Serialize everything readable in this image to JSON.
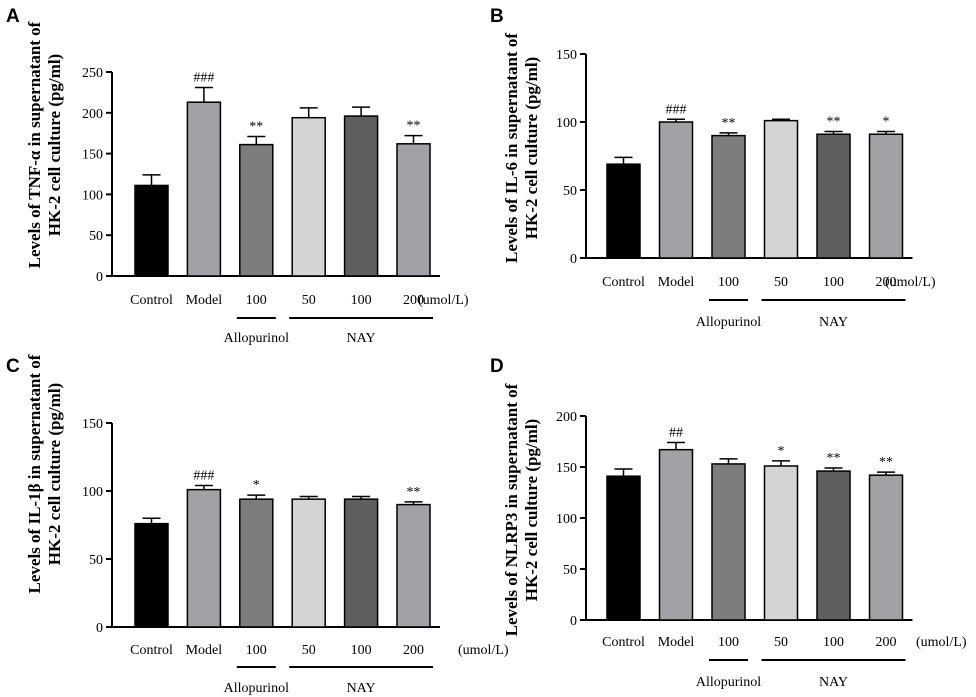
{
  "figure": {
    "categories": [
      "Control",
      "Model",
      "100",
      "50",
      "100",
      "200"
    ],
    "units": "(umol/L)",
    "groups": [
      {
        "label": "Allopurinol",
        "from": 2,
        "to": 2
      },
      {
        "label": "NAY",
        "from": 3,
        "to": 5
      }
    ],
    "bar_colors": [
      "#000000",
      "#a1a1a6",
      "#7d7d7d",
      "#d4d4d4",
      "#5e5e5e",
      "#a1a1a6"
    ]
  },
  "chart_data": [
    {
      "type": "bar",
      "panel": "A",
      "ylabel_line1": "Levels of TNF-α in supernatant of",
      "ylabel_line2": "HK-2 cell culture (pg/ml)",
      "categories": [
        "Control",
        "Model",
        "100",
        "50",
        "100",
        "200"
      ],
      "values": [
        111,
        213,
        161,
        194,
        196,
        162
      ],
      "errors": [
        13,
        18,
        10,
        12,
        11,
        10
      ],
      "significance": [
        "",
        "###",
        "**",
        "",
        "",
        "**"
      ],
      "ylim": [
        0,
        250
      ],
      "yticks": [
        0,
        50,
        100,
        150,
        200,
        250
      ]
    },
    {
      "type": "bar",
      "panel": "B",
      "ylabel_line1": "Levels of IL-6 in supernatant of",
      "ylabel_line2": "HK-2 cell culture (pg/ml)",
      "categories": [
        "Control",
        "Model",
        "100",
        "50",
        "100",
        "200"
      ],
      "values": [
        69,
        100,
        90,
        101,
        91,
        91
      ],
      "errors": [
        5,
        2,
        2,
        1,
        2,
        2
      ],
      "significance": [
        "",
        "###",
        "**",
        "",
        "**",
        "*"
      ],
      "ylim": [
        0,
        150
      ],
      "yticks": [
        0,
        50,
        100,
        150
      ]
    },
    {
      "type": "bar",
      "panel": "C",
      "ylabel_line1": "Levels of IL-1β in supernatant of",
      "ylabel_line2": "HK-2 cell culture (pg/ml)",
      "categories": [
        "Control",
        "Model",
        "100",
        "50",
        "100",
        "200"
      ],
      "values": [
        76,
        101,
        94,
        94,
        94,
        90
      ],
      "errors": [
        4,
        3,
        3,
        2,
        2,
        2
      ],
      "significance": [
        "",
        "###",
        "*",
        "",
        "",
        "**"
      ],
      "ylim": [
        0,
        150
      ],
      "yticks": [
        0,
        50,
        100,
        150
      ]
    },
    {
      "type": "bar",
      "panel": "D",
      "ylabel_line1": "Levels of NLRP3 in supernatant of",
      "ylabel_line2": "HK-2 cell culture (pg/ml)",
      "categories": [
        "Control",
        "Model",
        "100",
        "50",
        "100",
        "200"
      ],
      "values": [
        141,
        167,
        153,
        151,
        146,
        142
      ],
      "errors": [
        7,
        7,
        5,
        5,
        3,
        3
      ],
      "significance": [
        "",
        "##",
        "",
        "*",
        "**",
        "**"
      ],
      "ylim": [
        0,
        200
      ],
      "yticks": [
        0,
        50,
        100,
        150,
        200
      ]
    }
  ]
}
